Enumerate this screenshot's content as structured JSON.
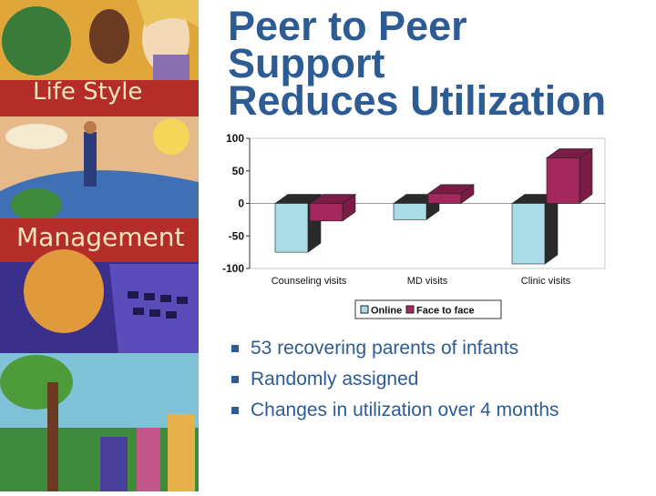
{
  "slide": {
    "title_lines": [
      "Peer to Peer",
      "Support",
      "Reduces Utilization"
    ],
    "art_labels": [
      "Life Style",
      "Management"
    ],
    "bullets": [
      "53 recovering parents of infants",
      "Randomly assigned",
      "Changes in utilization over 4 months"
    ]
  },
  "colors": {
    "title": "#2d5b93",
    "online_face": "#a9dce6",
    "online_side": "#2a2a2a",
    "face_front": "#a3285e",
    "face_top": "#7a1c44"
  },
  "chart_data": {
    "type": "bar",
    "categories": [
      "Counseling visits",
      "MD visits",
      "Clinic visits"
    ],
    "series": [
      {
        "name": "Online",
        "values": [
          -75,
          -25,
          -93
        ]
      },
      {
        "name": "Face to face",
        "values": [
          -27,
          15,
          70
        ]
      }
    ],
    "yticks": [
      "100",
      "50",
      "0",
      "-50",
      "-100"
    ],
    "ylim": [
      -100,
      100
    ],
    "legend_position": "bottom",
    "grid": false
  }
}
